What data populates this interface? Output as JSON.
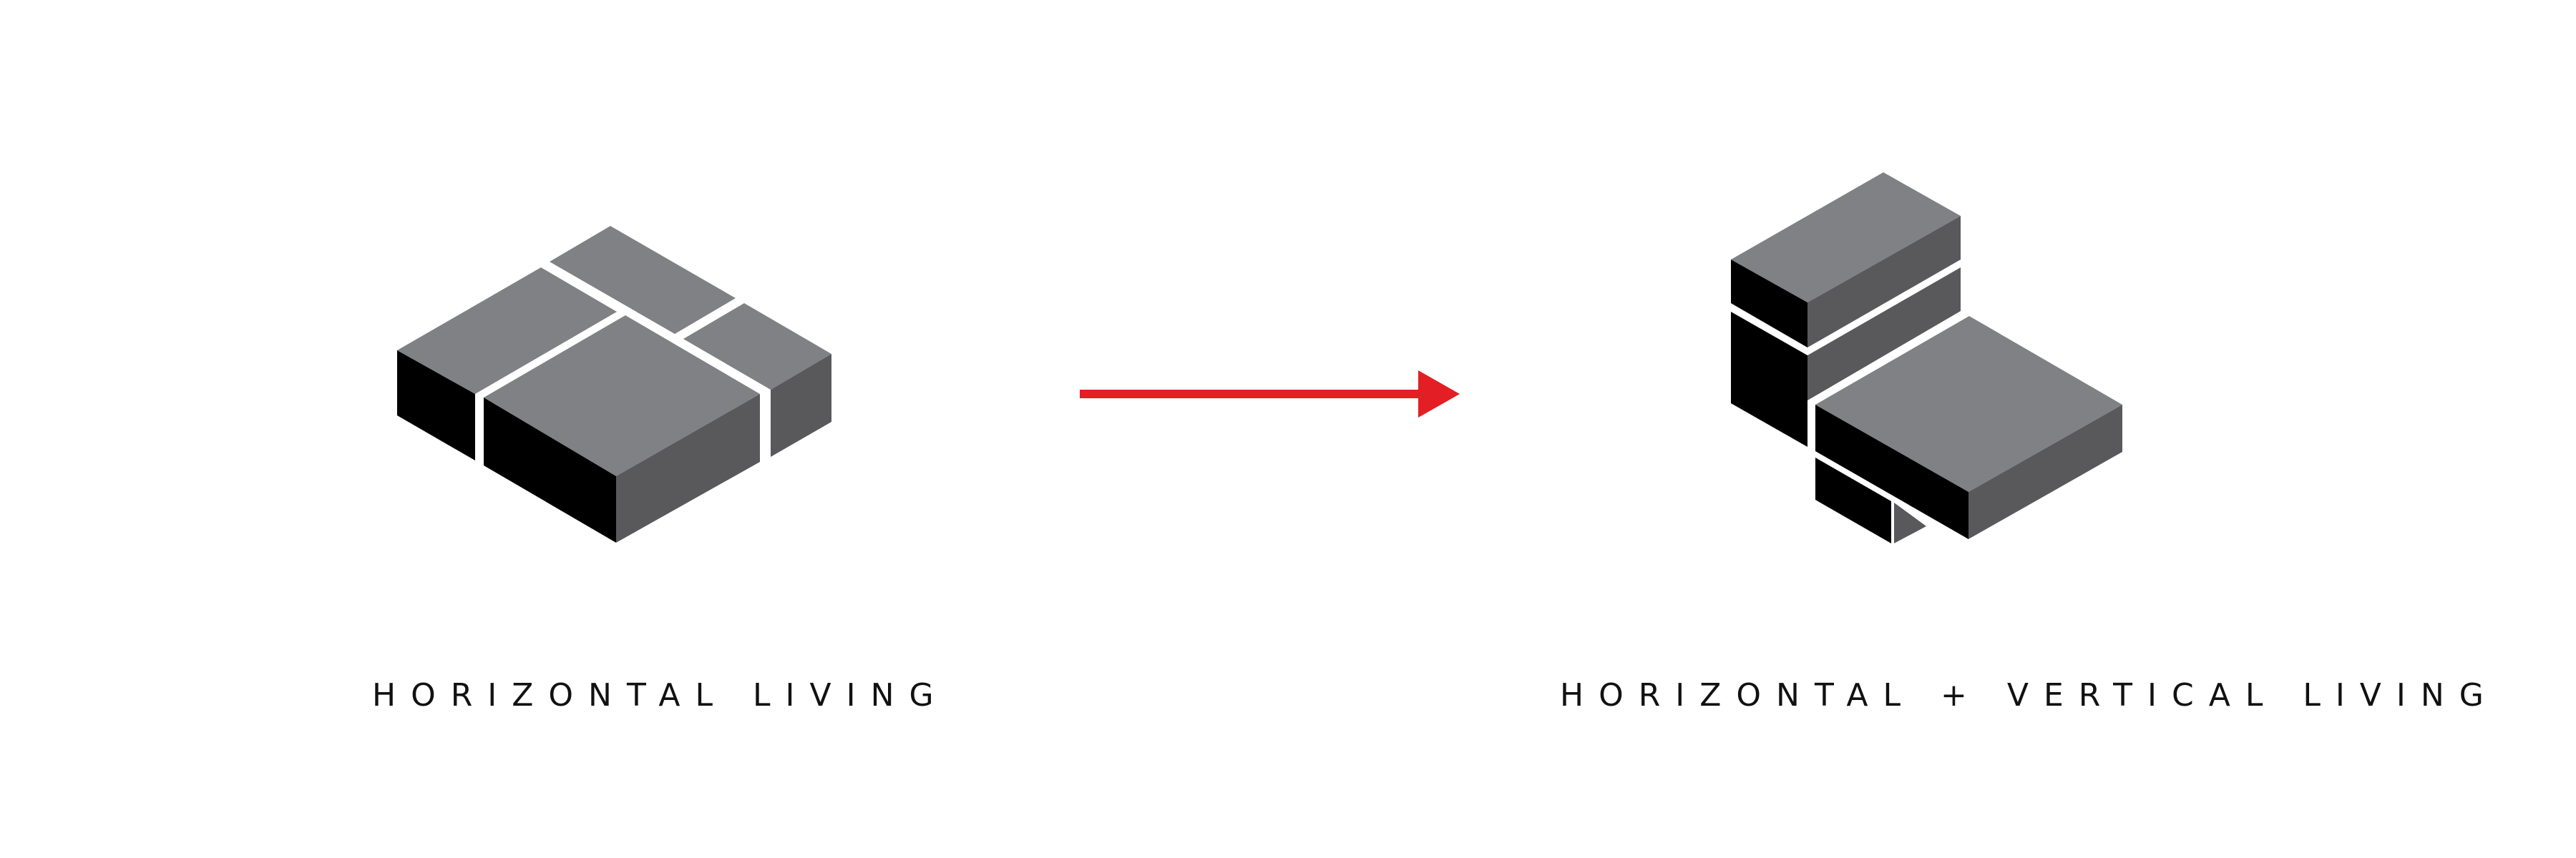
{
  "captions": {
    "left": "HORIZONTAL LIVING",
    "right": "HORIZONTAL + VERTICAL LIVING"
  },
  "colors": {
    "top_face": "#808184",
    "side_face_dark": "#59595b",
    "side_face_black": "#000000",
    "gap": "#ffffff",
    "arrow": "#e31e24",
    "text": "#111111"
  }
}
